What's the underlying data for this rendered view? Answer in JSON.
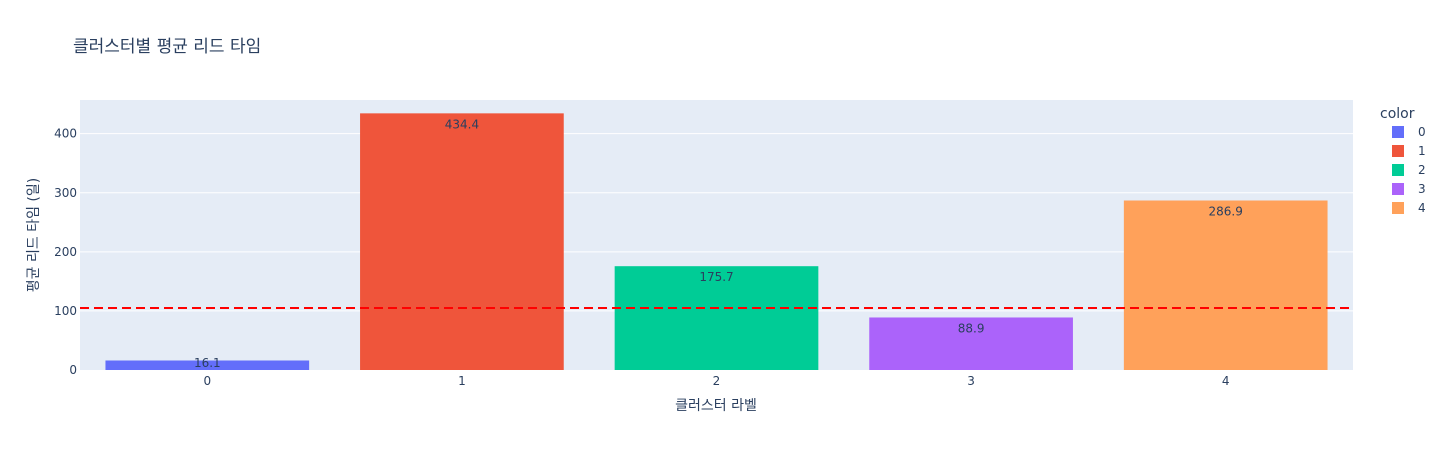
{
  "chart_data": {
    "type": "bar",
    "title": "클러스터별 평균 리드 타임",
    "xlabel": "클러스터 라벨",
    "ylabel": "평균 리드 타임 (일)",
    "categories": [
      "0",
      "1",
      "2",
      "3",
      "4"
    ],
    "values": [
      16.1,
      434.4,
      175.7,
      88.9,
      286.9
    ],
    "data_labels": [
      "16.1",
      "434.4",
      "175.7",
      "88.9",
      "286.9"
    ],
    "colors": [
      "#636efa",
      "#EF553B",
      "#00cc96",
      "#ab63fa",
      "#FFA15A"
    ],
    "ylim": [
      0,
      457
    ],
    "yticks": [
      0,
      100,
      200,
      300,
      400
    ],
    "reference_line": {
      "y": 105,
      "style": "dashed",
      "color": "#ff0000"
    },
    "grid": true,
    "legend": {
      "title": "color",
      "position": "right",
      "entries": [
        "0",
        "1",
        "2",
        "3",
        "4"
      ]
    }
  }
}
